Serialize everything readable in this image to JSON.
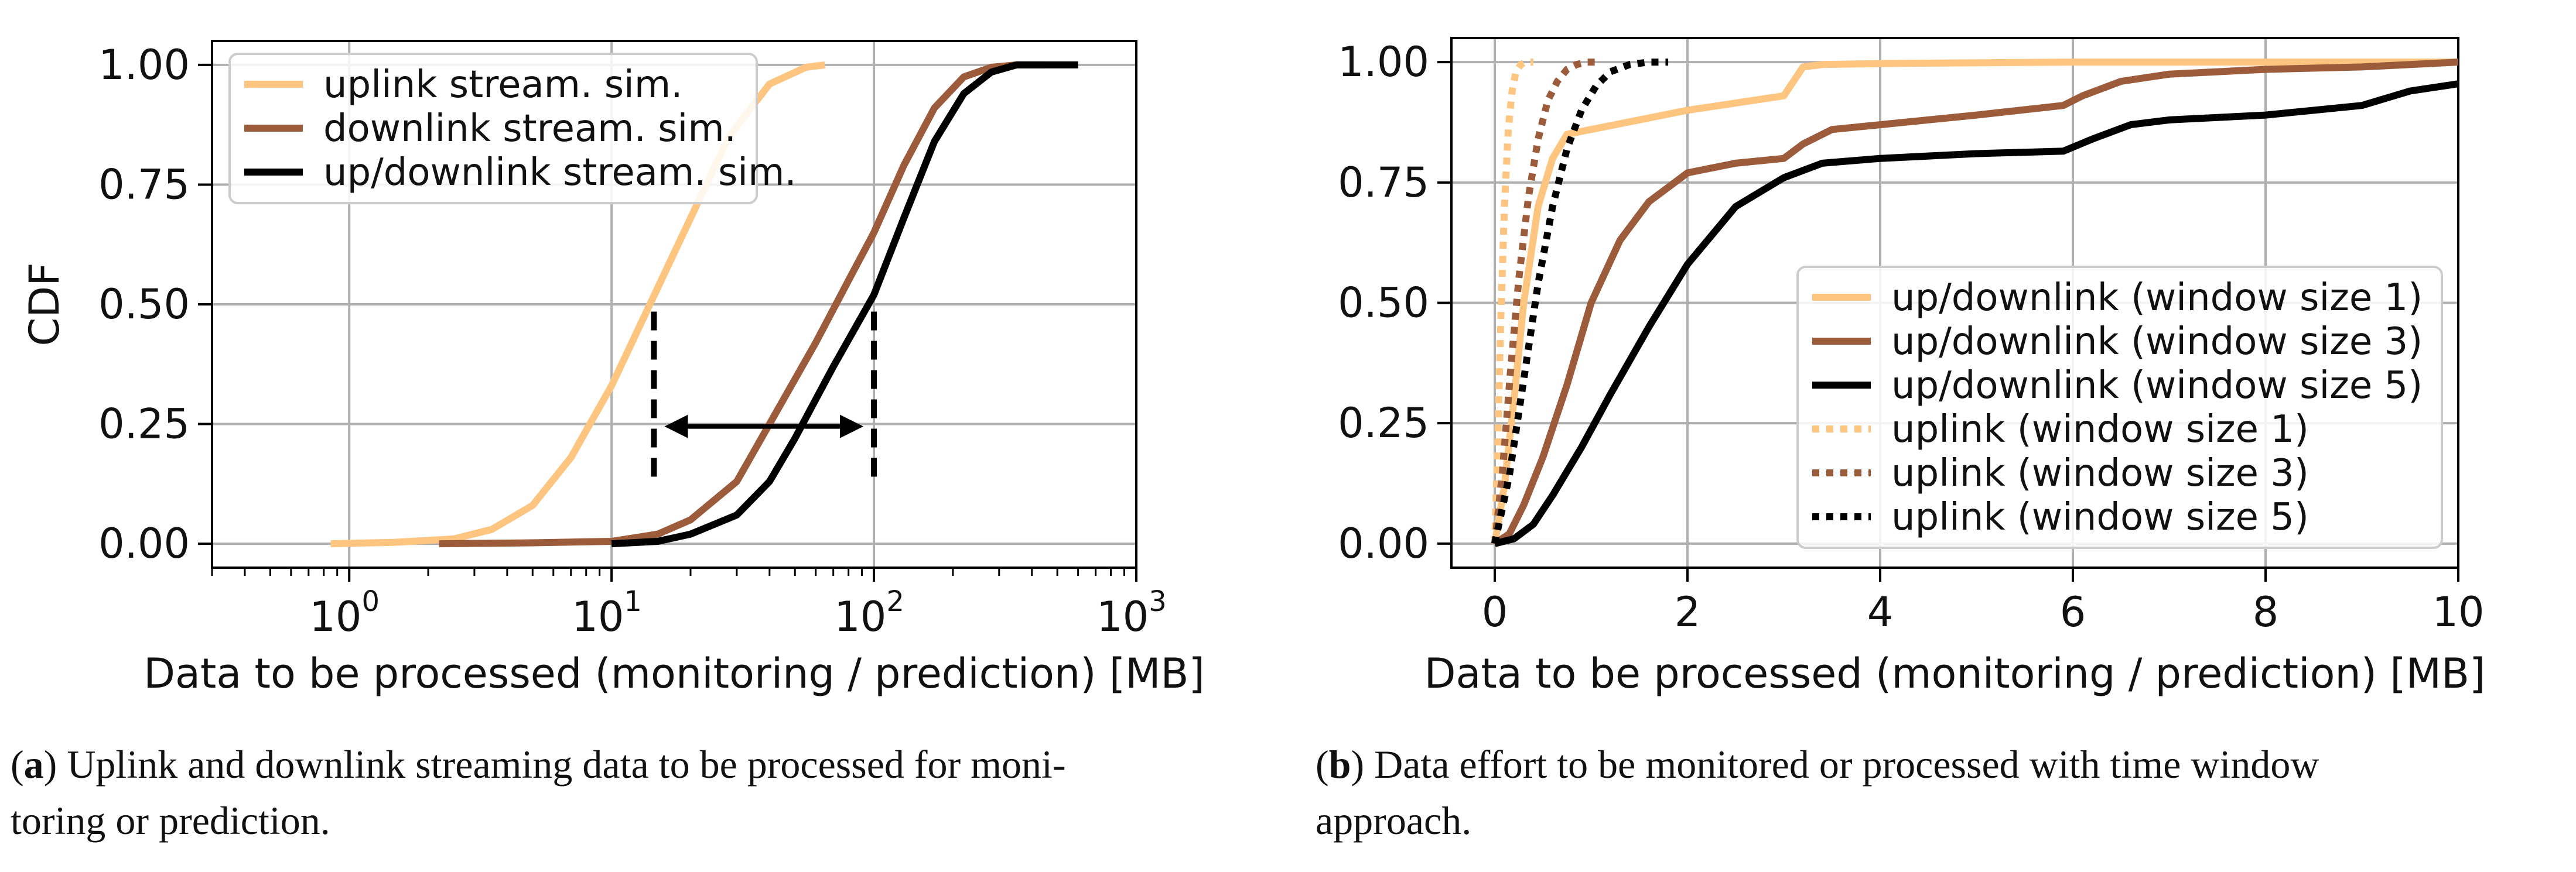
{
  "chart_data": [
    {
      "type": "line",
      "xscale": "log",
      "title": "",
      "xlabel": "Data to be processed (monitoring / prediction) [MB]",
      "ylabel": "CDF",
      "xlim": [
        0.3,
        1000
      ],
      "ylim": [
        -0.05,
        1.05
      ],
      "x_ticks": [
        1,
        10,
        100,
        1000
      ],
      "x_tick_labels": [
        {
          "base": "10",
          "exp": "0"
        },
        {
          "base": "10",
          "exp": "1"
        },
        {
          "base": "10",
          "exp": "2"
        },
        {
          "base": "10",
          "exp": "3"
        }
      ],
      "y_ticks": [
        0,
        0.25,
        0.5,
        0.75,
        1.0
      ],
      "y_tick_labels": [
        "0.00",
        "0.25",
        "0.50",
        "0.75",
        "1.00"
      ],
      "grid": true,
      "legend_position": "top-left",
      "series": [
        {
          "name": "uplink stream. sim.",
          "color": "#fdc57f",
          "style": "solid",
          "x": [
            0.85,
            1.5,
            2.5,
            3.5,
            5,
            7,
            10,
            14,
            20,
            28,
            40,
            55,
            65
          ],
          "y": [
            0.0,
            0.003,
            0.01,
            0.03,
            0.08,
            0.18,
            0.33,
            0.5,
            0.68,
            0.85,
            0.96,
            0.995,
            1.0
          ]
        },
        {
          "name": "downlink stream. sim.",
          "color": "#9c5b3a",
          "style": "solid",
          "x": [
            2.2,
            5,
            10,
            15,
            20,
            30,
            40,
            60,
            80,
            100,
            130,
            170,
            220,
            280,
            350,
            450
          ],
          "y": [
            0.0,
            0.002,
            0.005,
            0.02,
            0.05,
            0.13,
            0.25,
            0.42,
            0.55,
            0.65,
            0.79,
            0.91,
            0.975,
            0.995,
            1.0,
            1.0
          ]
        },
        {
          "name": "up/downlink stream. sim.",
          "color": "#000000",
          "style": "solid",
          "x": [
            10,
            15,
            20,
            30,
            40,
            50,
            70,
            100,
            130,
            170,
            220,
            280,
            350,
            450,
            600
          ],
          "y": [
            0.0,
            0.005,
            0.02,
            0.06,
            0.13,
            0.22,
            0.37,
            0.52,
            0.68,
            0.84,
            0.94,
            0.985,
            1.0,
            1.0,
            1.0
          ]
        }
      ],
      "annotations": [
        {
          "type": "dashed_vline",
          "x": 14.5,
          "y_from": 0.14,
          "y_to": 0.5
        },
        {
          "type": "dashed_vline",
          "x": 100,
          "y_from": 0.14,
          "y_to": 0.5
        },
        {
          "type": "double_arrow",
          "x_from": 14.5,
          "x_to": 100,
          "y": 0.245
        }
      ]
    },
    {
      "type": "line",
      "xscale": "linear",
      "title": "",
      "xlabel": "Data to be processed (monitoring / prediction) [MB]",
      "ylabel": "",
      "xlim": [
        -0.45,
        10
      ],
      "ylim": [
        -0.05,
        1.05
      ],
      "x_ticks": [
        0,
        2,
        4,
        6,
        8,
        10
      ],
      "x_tick_labels": [
        "0",
        "2",
        "4",
        "6",
        "8",
        "10"
      ],
      "y_ticks": [
        0,
        0.25,
        0.5,
        0.75,
        1.0
      ],
      "y_tick_labels": [
        "0.00",
        "0.25",
        "0.50",
        "0.75",
        "1.00"
      ],
      "grid": true,
      "legend_position": "lower-right",
      "series": [
        {
          "name": "up/downlink (window size 1)",
          "color": "#fdc57f",
          "style": "solid",
          "x": [
            0,
            0.1,
            0.2,
            0.3,
            0.45,
            0.6,
            0.75,
            1.0,
            1.5,
            2.0,
            2.5,
            3.0,
            3.2,
            3.4,
            4,
            6,
            8,
            10
          ],
          "y": [
            0,
            0.12,
            0.3,
            0.5,
            0.7,
            0.8,
            0.85,
            0.86,
            0.88,
            0.9,
            0.915,
            0.93,
            0.99,
            0.995,
            0.997,
            1.0,
            1.0,
            1.0
          ]
        },
        {
          "name": "up/downlink (window size 3)",
          "color": "#9c5b3a",
          "style": "solid",
          "x": [
            0,
            0.15,
            0.3,
            0.5,
            0.75,
            1.0,
            1.3,
            1.6,
            2.0,
            2.5,
            3.0,
            3.2,
            3.5,
            4.0,
            5.0,
            5.9,
            6.1,
            6.5,
            7.0,
            8.0,
            9.0,
            10
          ],
          "y": [
            0,
            0.02,
            0.08,
            0.18,
            0.33,
            0.5,
            0.63,
            0.71,
            0.77,
            0.79,
            0.8,
            0.83,
            0.86,
            0.87,
            0.89,
            0.91,
            0.93,
            0.96,
            0.975,
            0.985,
            0.99,
            1.0
          ]
        },
        {
          "name": "up/downlink (window size 5)",
          "color": "#000000",
          "style": "solid",
          "x": [
            0,
            0.2,
            0.4,
            0.6,
            0.9,
            1.2,
            1.6,
            2.0,
            2.5,
            3.0,
            3.4,
            4.0,
            5.0,
            5.9,
            6.2,
            6.6,
            7.0,
            8.0,
            9.0,
            9.5,
            10
          ],
          "y": [
            0,
            0.01,
            0.04,
            0.1,
            0.2,
            0.31,
            0.45,
            0.58,
            0.7,
            0.76,
            0.79,
            0.8,
            0.81,
            0.815,
            0.84,
            0.87,
            0.88,
            0.89,
            0.91,
            0.94,
            0.955
          ]
        },
        {
          "name": "uplink (window size 1)",
          "color": "#fdc57f",
          "style": "dotted",
          "x": [
            0,
            0.03,
            0.06,
            0.1,
            0.14,
            0.18,
            0.22,
            0.27,
            0.32,
            0.4
          ],
          "y": [
            0,
            0.2,
            0.45,
            0.7,
            0.86,
            0.94,
            0.98,
            0.995,
            1.0,
            1.0
          ]
        },
        {
          "name": "uplink (window size 3)",
          "color": "#9c5b3a",
          "style": "dotted",
          "x": [
            0,
            0.08,
            0.16,
            0.25,
            0.35,
            0.45,
            0.55,
            0.65,
            0.75,
            0.85,
            0.95,
            1.1
          ],
          "y": [
            0,
            0.15,
            0.35,
            0.55,
            0.72,
            0.84,
            0.92,
            0.96,
            0.985,
            0.995,
            1.0,
            1.0
          ]
        },
        {
          "name": "uplink (window size 5)",
          "color": "#000000",
          "style": "dotted",
          "x": [
            0,
            0.15,
            0.3,
            0.45,
            0.6,
            0.75,
            0.9,
            1.05,
            1.2,
            1.4,
            1.6,
            1.8
          ],
          "y": [
            0,
            0.14,
            0.34,
            0.54,
            0.7,
            0.82,
            0.9,
            0.95,
            0.98,
            0.995,
            1.0,
            1.0
          ]
        }
      ]
    }
  ],
  "captions": {
    "a": {
      "label": "a",
      "line1": "Uplink and downlink streaming data to be processed for moni-",
      "line2": "toring or prediction."
    },
    "b": {
      "label": "b",
      "line1": "Data effort to be monitored or processed with time window",
      "line2": "approach."
    }
  }
}
